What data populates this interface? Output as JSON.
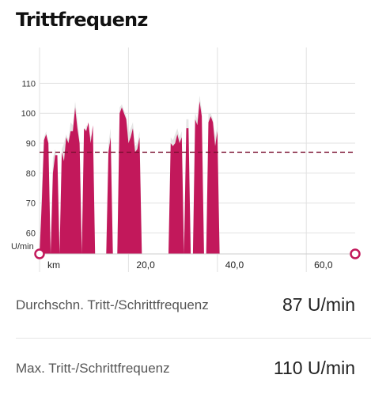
{
  "title": "Trittfrequenz",
  "chart_data": {
    "type": "area",
    "y_unit_label": "U/min",
    "x_unit_label": "km",
    "y_ticks": [
      "60",
      "70",
      "80",
      "90",
      "100",
      "110"
    ],
    "x_ticks": [
      "20,0",
      "40,0",
      "60,0"
    ],
    "ylim": [
      53,
      122
    ],
    "xlim": [
      0,
      71
    ],
    "reference_line": 87,
    "colors": {
      "primary": "#c2185b",
      "secondary": "#e5e5e5",
      "reference": "#7a1030",
      "grid": "#e2e2e2",
      "marker": "#c2185b"
    },
    "series": [
      {
        "x": [
          0,
          0.5,
          1.0,
          1.5,
          2.0,
          2.5,
          3.0,
          3.5,
          4.0,
          4.5,
          5.0,
          5.5,
          6.0,
          6.5,
          7.0,
          7.5,
          8.0,
          8.5,
          9.0,
          9.5,
          10.0,
          10.5,
          11.0,
          11.5,
          12.0,
          12.5,
          13.0,
          13.5,
          14.0,
          14.5,
          15.0,
          15.5,
          16.0,
          16.5,
          17.0,
          17.5,
          18.0,
          18.5,
          19.0,
          19.5,
          20.0,
          20.5,
          21.0,
          21.5,
          22.0,
          22.5,
          23.0,
          23.5,
          24.0,
          24.5,
          25.0,
          25.5,
          26.0,
          26.5,
          27.0,
          27.5,
          28.0,
          28.5,
          29.0,
          29.5,
          30.0,
          30.5,
          31.0,
          31.5,
          32.0,
          32.5,
          33.0,
          33.5,
          34.0,
          34.5,
          35.0,
          35.5,
          36.0,
          36.5,
          37.0,
          37.5,
          38.0,
          38.5,
          39.0,
          39.5,
          40.0,
          40.5,
          41.0,
          41.5,
          42.0,
          42.5,
          43.0,
          43.5,
          44.0,
          44.5,
          45.0,
          45.5,
          46.0,
          46.5,
          47.0,
          47.5,
          48.0,
          48.5,
          49.0,
          49.5,
          50.0,
          50.5,
          51.0,
          51.5,
          52.0,
          52.5,
          53.0,
          53.5,
          54.0,
          54.5,
          55.0,
          55.5,
          56.0,
          56.5,
          57.0,
          57.5,
          58.0,
          58.5,
          59.0,
          59.5,
          60.0,
          60.5,
          61.0,
          61.5,
          62.0,
          62.5,
          63.0,
          63.5,
          64.0,
          64.5,
          65.0,
          65.5,
          66.0,
          66.5,
          67.0,
          67.5,
          68.0,
          68.5,
          69.0,
          69.5,
          70.0,
          70.5,
          71.0
        ],
        "values": [
          53,
          70,
          91,
          93,
          90,
          53,
          80,
          86,
          86,
          53,
          87,
          84,
          92,
          90,
          94,
          94,
          102,
          95,
          90,
          53,
          95,
          94,
          97,
          90,
          96,
          53,
          53,
          53,
          53,
          53,
          53,
          87,
          92,
          53,
          53,
          53,
          100,
          102,
          100,
          98,
          90,
          92,
          95,
          87,
          88,
          92,
          53,
          53,
          53,
          53,
          53,
          53,
          53,
          53,
          53,
          53,
          53,
          53,
          53,
          90,
          89,
          90,
          93,
          90,
          92,
          53,
          95,
          95,
          53,
          53,
          98,
          96,
          104,
          99,
          53,
          53,
          97,
          99,
          97,
          89,
          94,
          53,
          53,
          53,
          53,
          53,
          53,
          53,
          53,
          53,
          53,
          53,
          53,
          53,
          53,
          53,
          53,
          53,
          53,
          53,
          53,
          53,
          53,
          53,
          53,
          53,
          53,
          53,
          53,
          53,
          53,
          53,
          53,
          53,
          53,
          53,
          53,
          53,
          53,
          53,
          53,
          53,
          53,
          53,
          53,
          53,
          53,
          53,
          53,
          53,
          53,
          53,
          53,
          53,
          53,
          53,
          53,
          53,
          53,
          53,
          53,
          53,
          53
        ]
      },
      {
        "x": [
          0,
          0.5,
          1.0,
          1.5,
          2.0,
          2.5,
          3.0,
          3.5,
          4.0,
          4.5,
          5.0,
          5.5,
          6.0,
          6.5,
          7.0,
          7.5,
          8.0,
          8.5,
          9.0,
          9.5,
          10.0,
          10.5,
          11.0,
          11.5,
          12.0,
          12.5,
          13.0,
          13.5,
          14.0,
          14.5,
          15.0,
          15.5,
          16.0,
          16.5,
          17.0,
          17.5,
          18.0,
          18.5,
          19.0,
          19.5,
          20.0,
          20.5,
          21.0,
          21.5,
          22.0,
          22.5,
          23.0,
          23.5,
          24.0,
          24.5,
          25.0,
          25.5,
          26.0,
          26.5,
          27.0,
          27.5,
          28.0,
          28.5,
          29.0,
          29.5,
          30.0,
          30.5,
          31.0,
          31.5,
          32.0,
          32.5,
          33.0,
          33.5,
          34.0,
          34.5,
          35.0,
          35.5,
          36.0,
          36.5,
          37.0,
          37.5,
          38.0,
          38.5,
          39.0,
          39.5,
          40.0,
          40.5,
          41.0,
          41.5,
          42.0,
          42.5,
          43.0,
          43.5,
          44.0,
          44.5,
          45.0,
          45.5,
          46.0,
          46.5,
          47.0,
          47.5,
          48.0,
          48.5,
          49.0,
          49.5,
          50.0,
          50.5,
          51.0,
          51.5,
          52.0,
          52.5,
          53.0,
          53.5,
          54.0,
          54.5,
          55.0,
          55.5,
          56.0,
          56.5,
          57.0,
          57.5,
          58.0,
          58.5,
          59.0,
          59.5,
          60.0,
          60.5,
          61.0,
          61.5,
          62.0,
          62.5,
          63.0,
          63.5,
          64.0,
          64.5,
          65.0,
          65.5,
          66.0,
          66.5,
          67.0,
          67.5,
          68.0,
          68.5,
          69.0,
          69.5,
          70.0,
          70.5,
          71.0
        ],
        "values": [
          53,
          75,
          92,
          94,
          88,
          53,
          85,
          88,
          85,
          53,
          88,
          90,
          93,
          91,
          97,
          96,
          104,
          98,
          91,
          53,
          92,
          96,
          95,
          92,
          94,
          53,
          53,
          53,
          53,
          53,
          53,
          90,
          95,
          53,
          53,
          53,
          102,
          103,
          101,
          99,
          93,
          95,
          97,
          89,
          90,
          94,
          53,
          53,
          53,
          53,
          53,
          53,
          53,
          53,
          53,
          53,
          53,
          53,
          53,
          92,
          91,
          93,
          95,
          92,
          94,
          53,
          98,
          98,
          53,
          53,
          100,
          98,
          106,
          101,
          53,
          53,
          100,
          100,
          98,
          92,
          96,
          53,
          53,
          53,
          53,
          53,
          53,
          53,
          53,
          53,
          53,
          53,
          53,
          53,
          53,
          53,
          53,
          53,
          53,
          53,
          53,
          53,
          53,
          53,
          53,
          53,
          53,
          53,
          53,
          53,
          53,
          53,
          53,
          53,
          53,
          53,
          53,
          53,
          53,
          53,
          53,
          53,
          53,
          53,
          53,
          53,
          53,
          53,
          53,
          53,
          53,
          53,
          53,
          53,
          53,
          53,
          53,
          53,
          53,
          53,
          53,
          53,
          53
        ]
      }
    ]
  },
  "stats": [
    {
      "label": "Durchschn. Tritt-/Schrittfrequenz",
      "value": "87 U/min"
    },
    {
      "label": "Max. Tritt-/Schrittfrequenz",
      "value": "110 U/min"
    }
  ]
}
